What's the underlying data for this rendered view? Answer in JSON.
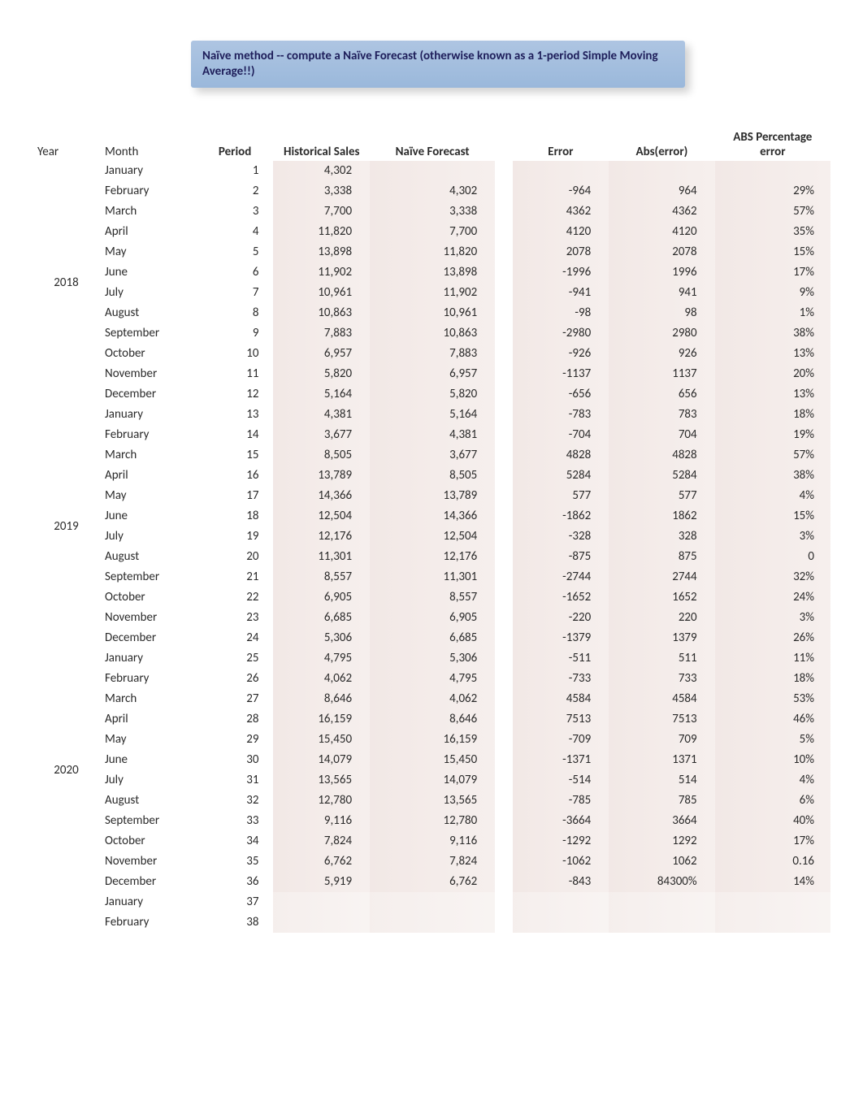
{
  "title": "Naïve method  -- compute a Naïve Forecast (otherwise known as a 1-period Simple Moving Average!!)",
  "headers": {
    "year": "Year",
    "month": "Month",
    "period": "Period",
    "sales": "Historical Sales",
    "forecast": "Naïve Forecast",
    "error": "Error",
    "abserr": "Abs(error)",
    "pct": "ABS Percentage error"
  },
  "year_labels": [
    "2018",
    "2019",
    "2020"
  ],
  "rows": [
    {
      "y": 0,
      "m": "January",
      "p": "1",
      "s": "4,302",
      "f": "",
      "e": "",
      "a": "",
      "pc": ""
    },
    {
      "y": 0,
      "m": "February",
      "p": "2",
      "s": "3,338",
      "f": "4,302",
      "e": "-964",
      "a": "964",
      "pc": "29%"
    },
    {
      "y": 0,
      "m": "March",
      "p": "3",
      "s": "7,700",
      "f": "3,338",
      "e": "4362",
      "a": "4362",
      "pc": "57%"
    },
    {
      "y": 0,
      "m": "April",
      "p": "4",
      "s": "11,820",
      "f": "7,700",
      "e": "4120",
      "a": "4120",
      "pc": "35%"
    },
    {
      "y": 0,
      "m": "May",
      "p": "5",
      "s": "13,898",
      "f": "11,820",
      "e": "2078",
      "a": "2078",
      "pc": "15%"
    },
    {
      "y": 0,
      "m": "June",
      "p": "6",
      "s": "11,902",
      "f": "13,898",
      "e": "-1996",
      "a": "1996",
      "pc": "17%"
    },
    {
      "y": 0,
      "m": "July",
      "p": "7",
      "s": "10,961",
      "f": "11,902",
      "e": "-941",
      "a": "941",
      "pc": "9%"
    },
    {
      "y": 0,
      "m": "August",
      "p": "8",
      "s": "10,863",
      "f": "10,961",
      "e": "-98",
      "a": "98",
      "pc": "1%"
    },
    {
      "y": 0,
      "m": "September",
      "p": "9",
      "s": "7,883",
      "f": "10,863",
      "e": "-2980",
      "a": "2980",
      "pc": "38%"
    },
    {
      "y": 0,
      "m": "October",
      "p": "10",
      "s": "6,957",
      "f": "7,883",
      "e": "-926",
      "a": "926",
      "pc": "13%"
    },
    {
      "y": 0,
      "m": "November",
      "p": "11",
      "s": "5,820",
      "f": "6,957",
      "e": "-1137",
      "a": "1137",
      "pc": "20%"
    },
    {
      "y": 0,
      "m": "December",
      "p": "12",
      "s": "5,164",
      "f": "5,820",
      "e": "-656",
      "a": "656",
      "pc": "13%"
    },
    {
      "y": 1,
      "m": "January",
      "p": "13",
      "s": "4,381",
      "f": "5,164",
      "e": "-783",
      "a": "783",
      "pc": "18%"
    },
    {
      "y": 1,
      "m": "February",
      "p": "14",
      "s": "3,677",
      "f": "4,381",
      "e": "-704",
      "a": "704",
      "pc": "19%"
    },
    {
      "y": 1,
      "m": "March",
      "p": "15",
      "s": "8,505",
      "f": "3,677",
      "e": "4828",
      "a": "4828",
      "pc": "57%"
    },
    {
      "y": 1,
      "m": "April",
      "p": "16",
      "s": "13,789",
      "f": "8,505",
      "e": "5284",
      "a": "5284",
      "pc": "38%"
    },
    {
      "y": 1,
      "m": "May",
      "p": "17",
      "s": "14,366",
      "f": "13,789",
      "e": "577",
      "a": "577",
      "pc": "4%"
    },
    {
      "y": 1,
      "m": "June",
      "p": "18",
      "s": "12,504",
      "f": "14,366",
      "e": "-1862",
      "a": "1862",
      "pc": "15%"
    },
    {
      "y": 1,
      "m": "July",
      "p": "19",
      "s": "12,176",
      "f": "12,504",
      "e": "-328",
      "a": "328",
      "pc": "3%"
    },
    {
      "y": 1,
      "m": "August",
      "p": "20",
      "s": "11,301",
      "f": "12,176",
      "e": "-875",
      "a": "875",
      "pc": "0"
    },
    {
      "y": 1,
      "m": "September",
      "p": "21",
      "s": "8,557",
      "f": "11,301",
      "e": "-2744",
      "a": "2744",
      "pc": "32%"
    },
    {
      "y": 1,
      "m": "October",
      "p": "22",
      "s": "6,905",
      "f": "8,557",
      "e": "-1652",
      "a": "1652",
      "pc": "24%"
    },
    {
      "y": 1,
      "m": "November",
      "p": "23",
      "s": "6,685",
      "f": "6,905",
      "e": "-220",
      "a": "220",
      "pc": "3%"
    },
    {
      "y": 1,
      "m": "December",
      "p": "24",
      "s": "5,306",
      "f": "6,685",
      "e": "-1379",
      "a": "1379",
      "pc": "26%"
    },
    {
      "y": 2,
      "m": "January",
      "p": "25",
      "s": "4,795",
      "f": "5,306",
      "e": "-511",
      "a": "511",
      "pc": "11%"
    },
    {
      "y": 2,
      "m": "February",
      "p": "26",
      "s": "4,062",
      "f": "4,795",
      "e": "-733",
      "a": "733",
      "pc": "18%"
    },
    {
      "y": 2,
      "m": "March",
      "p": "27",
      "s": "8,646",
      "f": "4,062",
      "e": "4584",
      "a": "4584",
      "pc": "53%"
    },
    {
      "y": 2,
      "m": "April",
      "p": "28",
      "s": "16,159",
      "f": "8,646",
      "e": "7513",
      "a": "7513",
      "pc": "46%"
    },
    {
      "y": 2,
      "m": "May",
      "p": "29",
      "s": "15,450",
      "f": "16,159",
      "e": "-709",
      "a": "709",
      "pc": "5%"
    },
    {
      "y": 2,
      "m": "June",
      "p": "30",
      "s": "14,079",
      "f": "15,450",
      "e": "-1371",
      "a": "1371",
      "pc": "10%"
    },
    {
      "y": 2,
      "m": "July",
      "p": "31",
      "s": "13,565",
      "f": "14,079",
      "e": "-514",
      "a": "514",
      "pc": "4%"
    },
    {
      "y": 2,
      "m": "August",
      "p": "32",
      "s": "12,780",
      "f": "13,565",
      "e": "-785",
      "a": "785",
      "pc": "6%"
    },
    {
      "y": 2,
      "m": "September",
      "p": "33",
      "s": "9,116",
      "f": "12,780",
      "e": "-3664",
      "a": "3664",
      "pc": "40%"
    },
    {
      "y": 2,
      "m": "October",
      "p": "34",
      "s": "7,824",
      "f": "9,116",
      "e": "-1292",
      "a": "1292",
      "pc": "17%"
    },
    {
      "y": 2,
      "m": "November",
      "p": "35",
      "s": "6,762",
      "f": "7,824",
      "e": "-1062",
      "a": "1062",
      "pc": "0.16"
    },
    {
      "y": 2,
      "m": "December",
      "p": "36",
      "s": "5,919",
      "f": "6,762",
      "e": "-843",
      "a": "84300%",
      "pc": "14%"
    }
  ],
  "extra_rows": [
    {
      "m": "January",
      "p": "37"
    },
    {
      "m": "February",
      "p": "38"
    }
  ]
}
